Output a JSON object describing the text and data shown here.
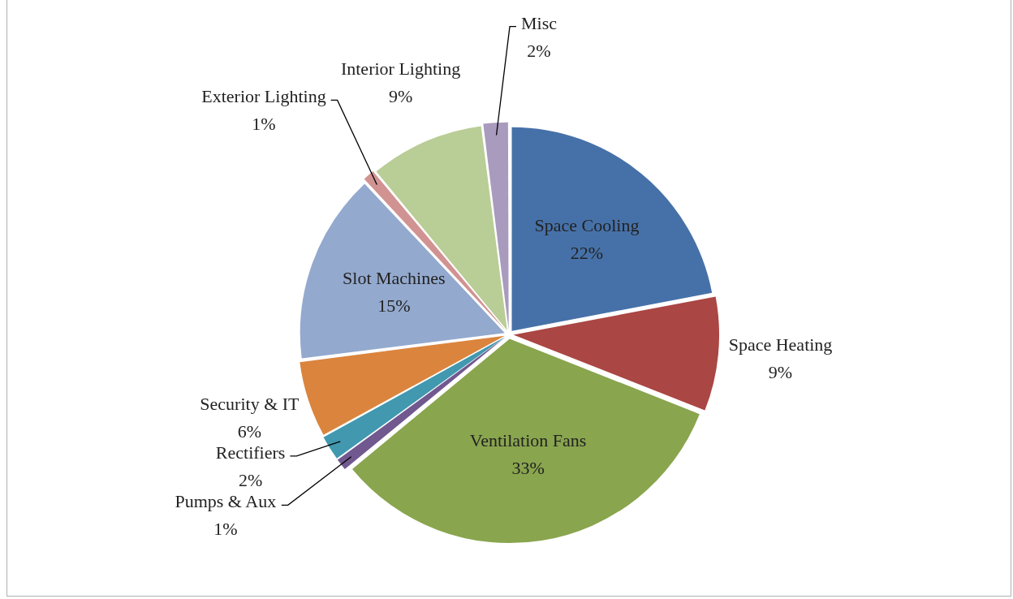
{
  "chart_data": {
    "type": "pie",
    "categories": [
      "Space Cooling",
      "Space Heating",
      "Ventilation Fans",
      "Pumps & Aux",
      "Rectifiers",
      "Security & IT",
      "Slot Machines",
      "Exterior Lighting",
      "Interior Lighting",
      "Misc"
    ],
    "values": [
      22,
      9,
      33,
      1,
      2,
      6,
      15,
      1,
      9,
      2
    ],
    "colors": [
      "#4671a8",
      "#aa4643",
      "#89a54e",
      "#71588f",
      "#4198af",
      "#db843d",
      "#93a9ce",
      "#d19392",
      "#b9cd96",
      "#a99bbd"
    ],
    "value_labels": [
      "22%",
      "9%",
      "33%",
      "1%",
      "2%",
      "6%",
      "15%",
      "1%",
      "9%",
      "2%"
    ],
    "legend": false
  }
}
